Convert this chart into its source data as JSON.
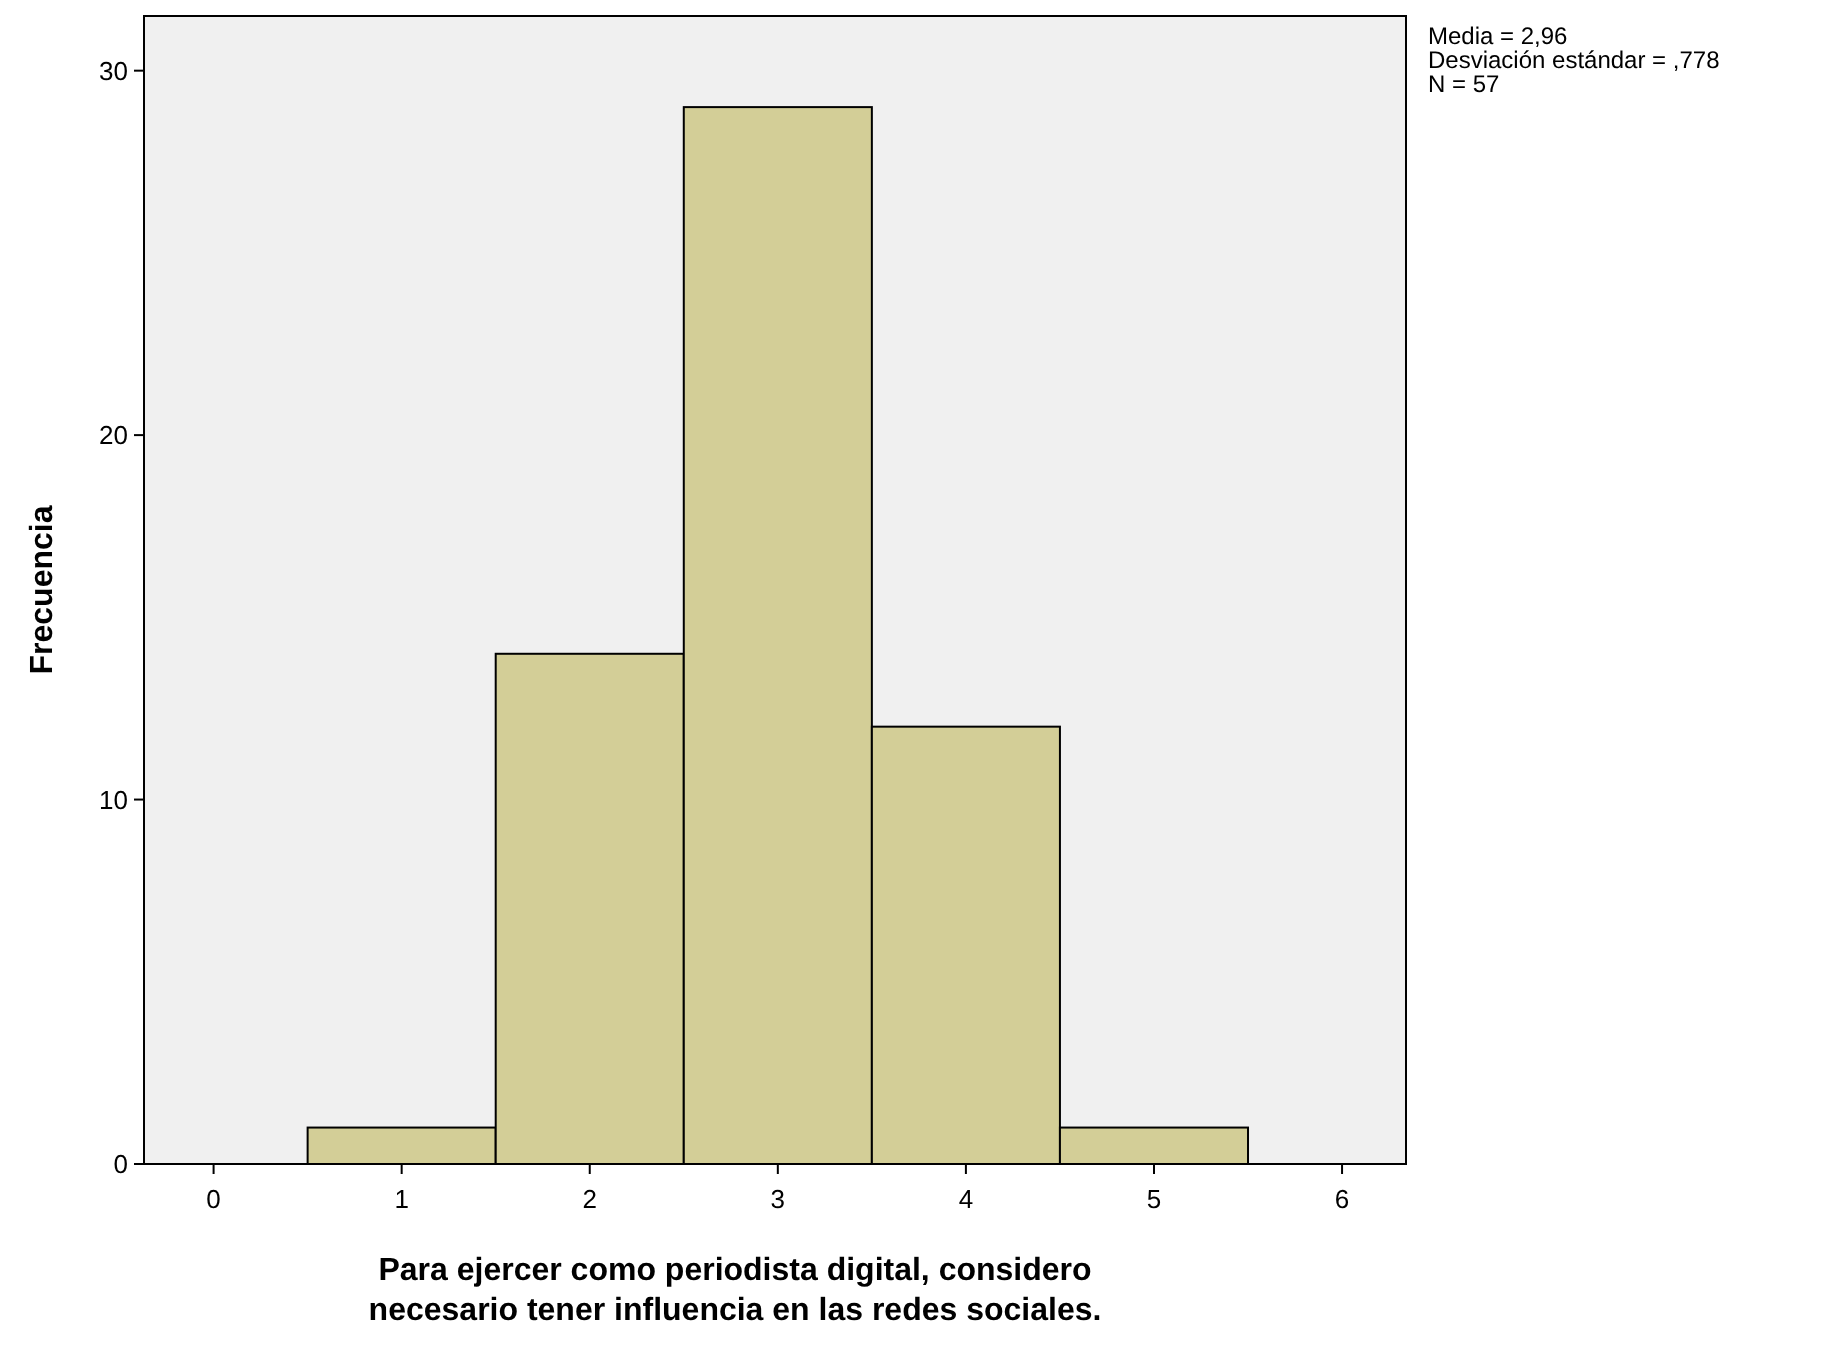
{
  "chart_data": {
    "type": "histogram",
    "xlabel": "Para ejercer como periodista digital, considero necesario tener influencia en las redes sociales.",
    "ylabel": "Frecuencia",
    "bins": [
      0.5,
      1.5,
      2.5,
      3.5,
      4.5,
      5.5
    ],
    "values": [
      1,
      14,
      29,
      12,
      1
    ],
    "color": "#d3ce97",
    "xlim": [
      -0.37,
      6.34
    ],
    "xticks": [
      0,
      1,
      2,
      3,
      4,
      5,
      6
    ],
    "ylim": [
      0,
      31.5
    ],
    "yticks": [
      0,
      10,
      20,
      30
    ],
    "grid": false,
    "annotations": [
      "Media = 2,96",
      "Desviación estándar = ,778",
      "N = 57"
    ]
  }
}
